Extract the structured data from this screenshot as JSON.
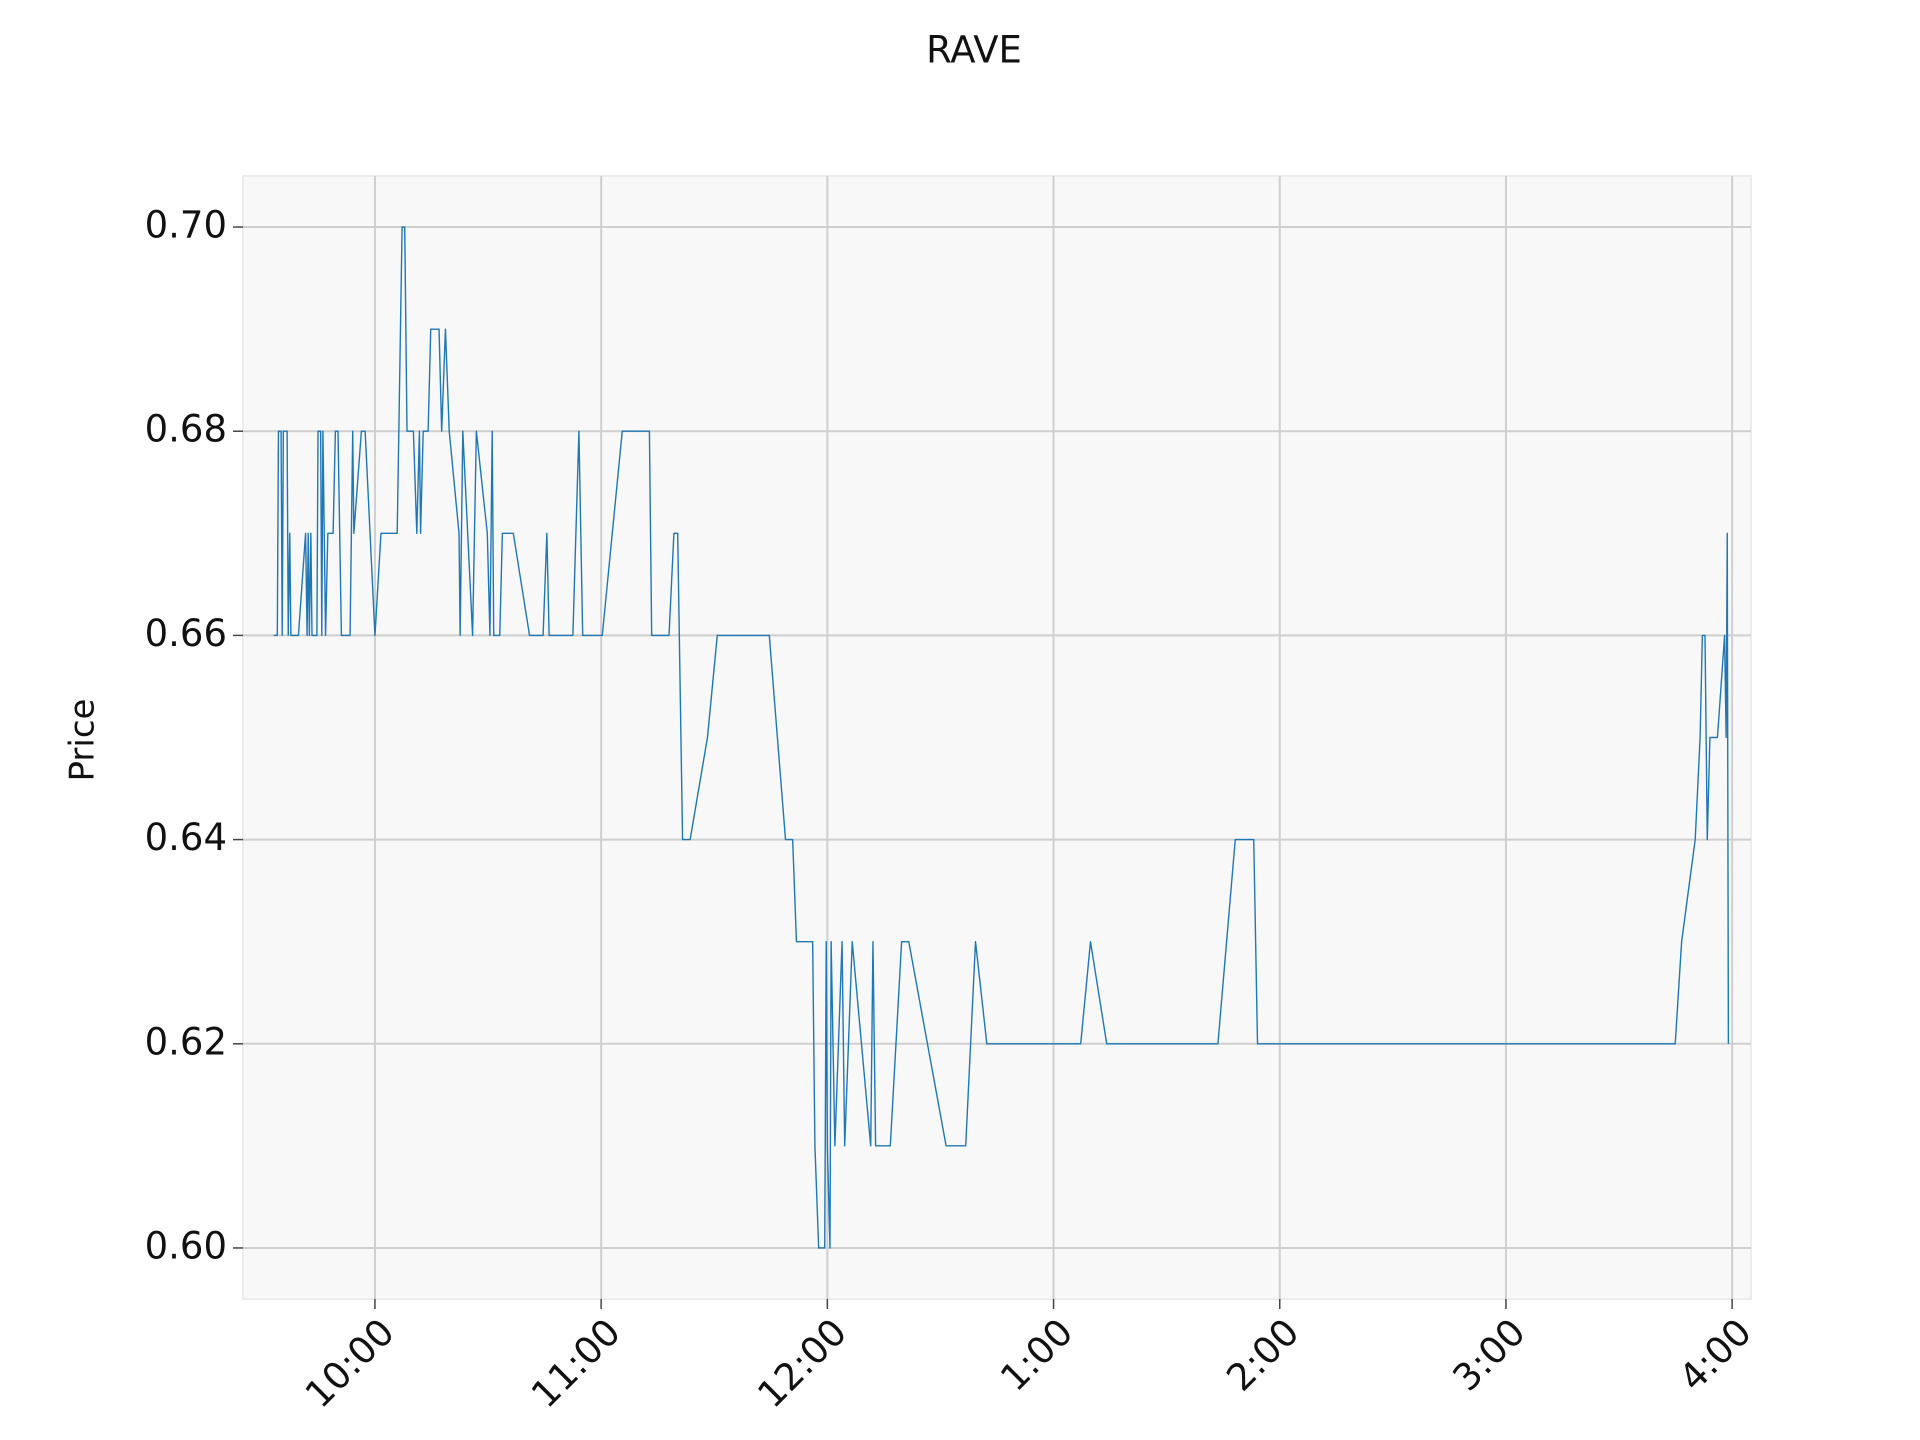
{
  "chart_data": {
    "type": "line",
    "title": "RAVE",
    "ylabel": "Price",
    "color": "#1f77b4",
    "grid": true,
    "x": [
      573.1,
      574.1,
      574.4,
      575.1,
      575.4,
      575.7,
      576.7,
      577.0,
      577.4,
      577.7,
      579.7,
      581.6,
      582.0,
      582.3,
      582.6,
      583.0,
      583.3,
      584.6,
      584.9,
      585.6,
      585.9,
      586.2,
      586.9,
      587.5,
      588.9,
      589.5,
      590.2,
      591.1,
      593.4,
      594.1,
      594.4,
      596.4,
      597.4,
      600.0,
      601.6,
      605.9,
      607.2,
      607.9,
      608.5,
      610.2,
      611.1,
      611.8,
      612.1,
      612.8,
      614.1,
      614.8,
      617.0,
      617.7,
      618.7,
      619.7,
      622.3,
      622.6,
      623.3,
      625.9,
      626.9,
      629.8,
      630.5,
      631.1,
      631.5,
      633.1,
      633.8,
      636.7,
      641.0,
      644.6,
      645.6,
      646.2,
      652.5,
      654.1,
      655.1,
      660.3,
      665.6,
      672.8,
      673.4,
      678.0,
      679.3,
      680.3,
      681.6,
      683.6,
      688.2,
      690.8,
      704.6,
      708.9,
      710.8,
      711.8,
      716.1,
      716.7,
      717.7,
      719.3,
      719.7,
      720.0,
      720.7,
      721.0,
      722.0,
      723.9,
      724.6,
      726.6,
      731.5,
      732.1,
      732.8,
      736.7,
      739.7,
      741.6,
      751.5,
      756.7,
      759.3,
      762.3,
      787.2,
      789.8,
      794.1,
      823.6,
      828.2,
      833.1,
      834.1,
      944.9,
      946.6,
      950.2,
      951.5,
      952.1,
      952.8,
      953.4,
      954.1,
      956.1,
      958.0,
      958.4,
      958.7,
      959.0
    ],
    "values": [
      0.66,
      0.66,
      0.68,
      0.68,
      0.66,
      0.68,
      0.68,
      0.66,
      0.67,
      0.66,
      0.66,
      0.67,
      0.66,
      0.67,
      0.66,
      0.67,
      0.66,
      0.66,
      0.68,
      0.68,
      0.66,
      0.68,
      0.66,
      0.67,
      0.67,
      0.68,
      0.68,
      0.66,
      0.66,
      0.68,
      0.67,
      0.68,
      0.68,
      0.66,
      0.67,
      0.67,
      0.7,
      0.7,
      0.68,
      0.68,
      0.67,
      0.68,
      0.67,
      0.68,
      0.68,
      0.69,
      0.69,
      0.68,
      0.69,
      0.68,
      0.67,
      0.66,
      0.68,
      0.66,
      0.68,
      0.67,
      0.66,
      0.68,
      0.66,
      0.66,
      0.67,
      0.67,
      0.66,
      0.66,
      0.67,
      0.66,
      0.66,
      0.68,
      0.66,
      0.66,
      0.68,
      0.68,
      0.66,
      0.66,
      0.67,
      0.67,
      0.64,
      0.64,
      0.65,
      0.66,
      0.66,
      0.64,
      0.64,
      0.63,
      0.63,
      0.61,
      0.6,
      0.6,
      0.63,
      0.61,
      0.6,
      0.63,
      0.61,
      0.63,
      0.61,
      0.63,
      0.61,
      0.63,
      0.61,
      0.61,
      0.63,
      0.63,
      0.61,
      0.61,
      0.63,
      0.62,
      0.62,
      0.63,
      0.62,
      0.62,
      0.64,
      0.64,
      0.62,
      0.62,
      0.63,
      0.64,
      0.65,
      0.66,
      0.66,
      0.64,
      0.65,
      0.65,
      0.66,
      0.65,
      0.67,
      0.62
    ],
    "xlim": [
      565,
      965
    ],
    "xticks": [
      {
        "value": 600,
        "label": "10:00"
      },
      {
        "value": 660,
        "label": "11:00"
      },
      {
        "value": 720,
        "label": "12:00"
      },
      {
        "value": 780,
        "label": "1:00"
      },
      {
        "value": 840,
        "label": "2:00"
      },
      {
        "value": 900,
        "label": "3:00"
      },
      {
        "value": 960,
        "label": "4:00"
      }
    ],
    "ylim": [
      0.595,
      0.705
    ],
    "yticks": [
      {
        "value": 0.6,
        "label": "0.60"
      },
      {
        "value": 0.62,
        "label": "0.62"
      },
      {
        "value": 0.64,
        "label": "0.64"
      },
      {
        "value": 0.66,
        "label": "0.66"
      },
      {
        "value": 0.68,
        "label": "0.68"
      },
      {
        "value": 0.7,
        "label": "0.70"
      }
    ]
  }
}
